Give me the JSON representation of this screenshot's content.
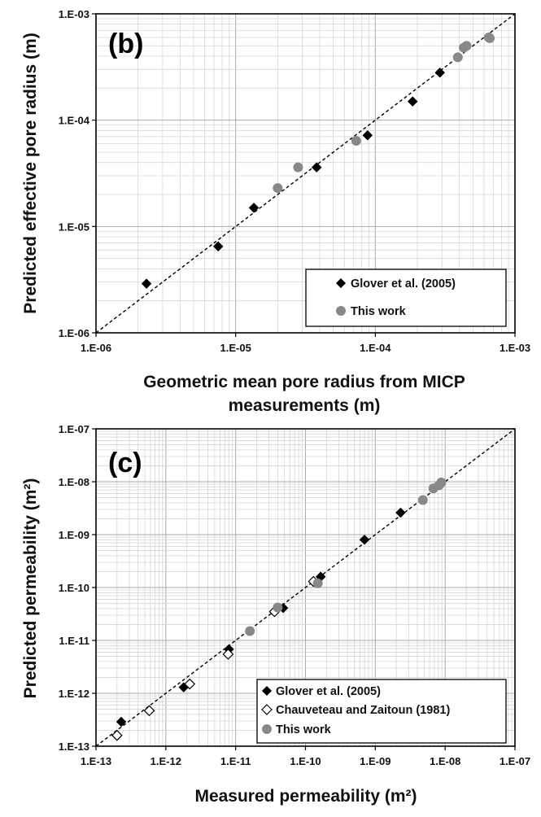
{
  "chart_data": [
    {
      "type": "scatter",
      "panel_label": "(b)",
      "xscale": "log",
      "yscale": "log",
      "xlim": [
        1e-06,
        0.001
      ],
      "ylim": [
        1e-06,
        0.001
      ],
      "xlabel_lines": [
        "Geometric mean pore radius from MICP",
        "measurements (m)"
      ],
      "ylabel": "Predicted  effective pore radius (m)",
      "x_tick_labels": [
        "1.E-06",
        "1.E-05",
        "1.E-04",
        "1.E-03"
      ],
      "y_tick_labels": [
        "1.E-06",
        "1.E-05",
        "1.E-04",
        "1.E-03"
      ],
      "grid": true,
      "reference_line": "1:1 dashed",
      "legend_position": "bottom-right",
      "series": [
        {
          "name": "Glover et al. (2005)",
          "marker": "filled-diamond",
          "color": "#000000",
          "points": [
            [
              2.3e-06,
              2.9e-06
            ],
            [
              7.5e-06,
              6.5e-06
            ],
            [
              1.35e-05,
              1.5e-05
            ],
            [
              3.8e-05,
              3.6e-05
            ],
            [
              8.8e-05,
              7.2e-05
            ],
            [
              0.000185,
              0.00015
            ],
            [
              0.00029,
              0.00028
            ]
          ]
        },
        {
          "name": "This work",
          "marker": "circle",
          "color": "#888888",
          "points": [
            [
              2e-05,
              2.3e-05
            ],
            [
              2.8e-05,
              3.6e-05
            ],
            [
              7.3e-05,
              6.4e-05
            ],
            [
              0.00039,
              0.00039
            ],
            [
              0.00043,
              0.00048
            ],
            [
              0.00045,
              0.0005
            ],
            [
              0.00065,
              0.0006
            ],
            [
              0.00066,
              0.00059
            ]
          ]
        }
      ]
    },
    {
      "type": "scatter",
      "panel_label": "(c)",
      "xscale": "log",
      "yscale": "log",
      "xlim": [
        1e-13,
        1e-07
      ],
      "ylim": [
        1e-13,
        1e-07
      ],
      "xlabel": "Measured permeability (m²)",
      "ylabel": "Predicted permeability  (m²)",
      "x_tick_labels": [
        "1.E-13",
        "1.E-12",
        "1.E-11",
        "1.E-10",
        "1.E-09",
        "1.E-08",
        "1.E-07"
      ],
      "y_tick_labels": [
        "1.E-13",
        "1.E-12",
        "1.E-11",
        "1.E-10",
        "1.E-09",
        "1.E-08",
        "1.E-07"
      ],
      "grid": true,
      "reference_line": "1:1 dashed",
      "legend_position": "bottom-right",
      "series": [
        {
          "name": "Glover et al. (2005)",
          "marker": "filled-diamond",
          "color": "#000000",
          "points": [
            [
              2.3e-13,
              2.9e-13
            ],
            [
              1.8e-12,
              1.3e-12
            ],
            [
              8e-12,
              6.8e-12
            ],
            [
              4.8e-11,
              4.1e-11
            ],
            [
              1.65e-10,
              1.6e-10
            ],
            [
              7e-10,
              8e-10
            ],
            [
              2.3e-09,
              2.6e-09
            ]
          ]
        },
        {
          "name": "Chauveteau and Zaitoun (1981)",
          "marker": "open-diamond",
          "color": "#000000",
          "points": [
            [
              2e-13,
              1.6e-13
            ],
            [
              5.8e-13,
              4.7e-13
            ],
            [
              2.2e-12,
              1.5e-12
            ],
            [
              7.8e-12,
              5.5e-12
            ],
            [
              3.6e-11,
              3.5e-11
            ],
            [
              1.3e-10,
              1.3e-10
            ]
          ]
        },
        {
          "name": "This work",
          "marker": "circle",
          "color": "#888888",
          "points": [
            [
              1.6e-11,
              1.5e-11
            ],
            [
              4e-11,
              4.2e-11
            ],
            [
              1.5e-10,
              1.2e-10
            ],
            [
              4.8e-09,
              4.5e-09
            ],
            [
              6.8e-09,
              7.5e-09
            ],
            [
              8.2e-09,
              8.6e-09
            ],
            [
              8.8e-09,
              9.7e-09
            ]
          ]
        }
      ]
    }
  ]
}
